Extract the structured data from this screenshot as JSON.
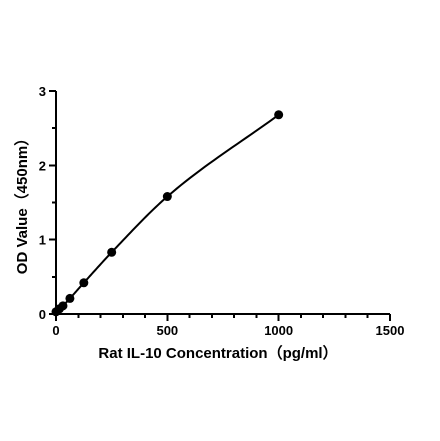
{
  "chart_data": {
    "type": "scatter",
    "title": "",
    "xlabel": "Rat IL-10 Concentration（pg/ml）",
    "ylabel": "OD Value（450nm）",
    "xlim": [
      0,
      1500
    ],
    "ylim": [
      0,
      3
    ],
    "x_ticks": [
      "0",
      "500",
      "1000",
      "1500"
    ],
    "y_ticks": [
      "0",
      "1",
      "2",
      "3"
    ],
    "x_minor_tick_step": 100,
    "y_minor_tick_step": 0.5,
    "grid": false,
    "fit": "smooth curve through points",
    "series": [
      {
        "x": [
          0,
          15.6,
          31.25,
          62.5,
          125,
          250,
          500,
          1000
        ],
        "y": [
          0.03,
          0.07,
          0.11,
          0.21,
          0.42,
          0.83,
          1.58,
          2.68
        ]
      }
    ]
  }
}
